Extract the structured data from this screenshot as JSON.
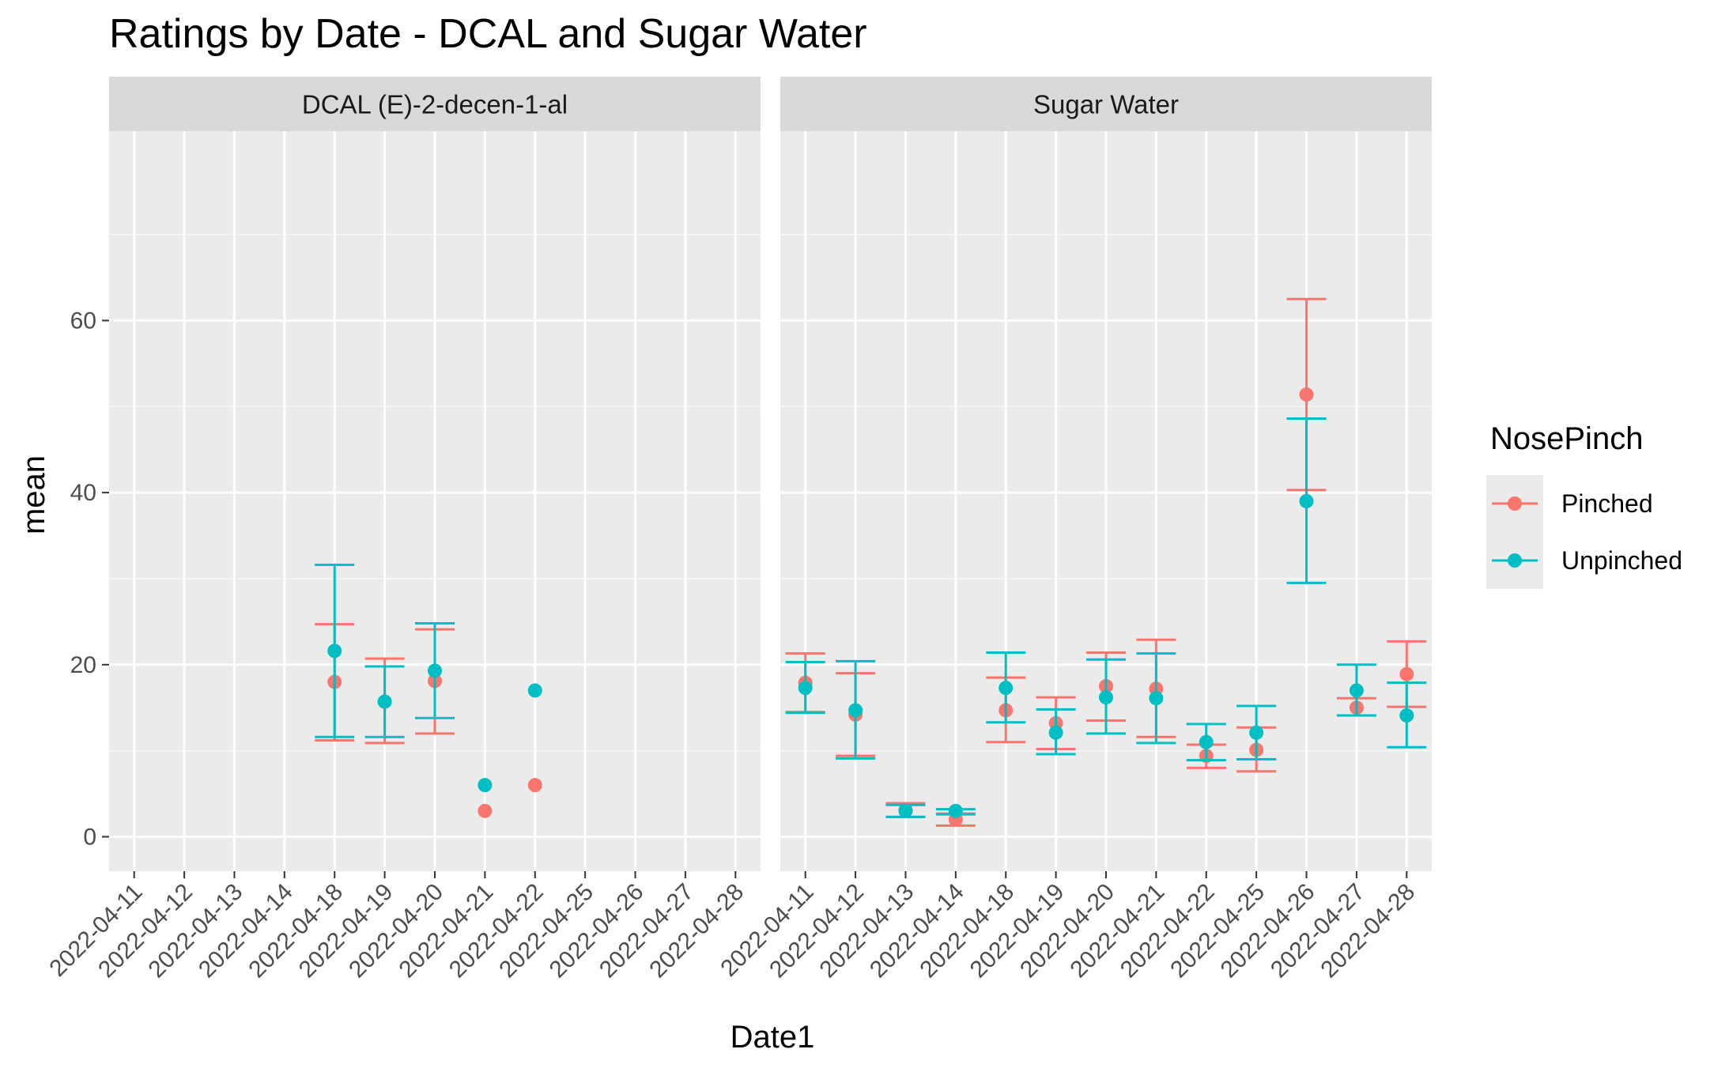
{
  "chart_data": {
    "type": "scatter",
    "title": "Ratings by Date - DCAL and Sugar Water",
    "xlabel": "Date1",
    "ylabel": "mean",
    "ylim": [
      -4,
      82
    ],
    "yticks": [
      0,
      20,
      40,
      60
    ],
    "grid": true,
    "legend": {
      "title": "NosePinch",
      "position": "right"
    },
    "categories": [
      "2022-04-11",
      "2022-04-12",
      "2022-04-13",
      "2022-04-14",
      "2022-04-18",
      "2022-04-19",
      "2022-04-20",
      "2022-04-21",
      "2022-04-22",
      "2022-04-25",
      "2022-04-26",
      "2022-04-27",
      "2022-04-28"
    ],
    "colors": {
      "Pinched": "#F8766D",
      "Unpinched": "#00BFC4"
    },
    "panels": [
      {
        "name": "DCAL (E)-2-decen-1-al",
        "series": [
          {
            "name": "Pinched",
            "points": [
              {
                "x": "2022-04-18",
                "y": 18.0,
                "lo": 11.2,
                "hi": 24.7
              },
              {
                "x": "2022-04-19",
                "y": 15.7,
                "lo": 10.9,
                "hi": 20.7
              },
              {
                "x": "2022-04-20",
                "y": 18.1,
                "lo": 12.0,
                "hi": 24.1
              },
              {
                "x": "2022-04-21",
                "y": 3.0
              },
              {
                "x": "2022-04-22",
                "y": 6.0
              }
            ]
          },
          {
            "name": "Unpinched",
            "points": [
              {
                "x": "2022-04-18",
                "y": 21.6,
                "lo": 11.6,
                "hi": 31.6
              },
              {
                "x": "2022-04-19",
                "y": 15.7,
                "lo": 11.6,
                "hi": 19.8
              },
              {
                "x": "2022-04-20",
                "y": 19.3,
                "lo": 13.8,
                "hi": 24.8
              },
              {
                "x": "2022-04-21",
                "y": 6.0
              },
              {
                "x": "2022-04-22",
                "y": 17.0
              }
            ]
          }
        ]
      },
      {
        "name": "Sugar Water",
        "series": [
          {
            "name": "Pinched",
            "points": [
              {
                "x": "2022-04-11",
                "y": 17.9,
                "lo": 14.5,
                "hi": 21.3
              },
              {
                "x": "2022-04-12",
                "y": 14.2,
                "lo": 9.4,
                "hi": 19.0
              },
              {
                "x": "2022-04-13",
                "y": 3.1,
                "lo": 2.3,
                "hi": 3.9
              },
              {
                "x": "2022-04-14",
                "y": 2.0,
                "lo": 1.3,
                "hi": 2.7
              },
              {
                "x": "2022-04-18",
                "y": 14.7,
                "lo": 11.0,
                "hi": 18.5
              },
              {
                "x": "2022-04-19",
                "y": 13.2,
                "lo": 10.2,
                "hi": 16.2
              },
              {
                "x": "2022-04-20",
                "y": 17.5,
                "lo": 13.5,
                "hi": 21.4
              },
              {
                "x": "2022-04-21",
                "y": 17.2,
                "lo": 11.6,
                "hi": 22.9
              },
              {
                "x": "2022-04-22",
                "y": 9.4,
                "lo": 8.0,
                "hi": 10.7
              },
              {
                "x": "2022-04-25",
                "y": 10.1,
                "lo": 7.6,
                "hi": 12.7
              },
              {
                "x": "2022-04-26",
                "y": 51.4,
                "lo": 40.3,
                "hi": 62.5
              },
              {
                "x": "2022-04-27",
                "y": 15.0,
                "lo": 14.1,
                "hi": 16.1
              },
              {
                "x": "2022-04-28",
                "y": 18.9,
                "lo": 15.1,
                "hi": 22.7
              }
            ]
          },
          {
            "name": "Unpinched",
            "points": [
              {
                "x": "2022-04-11",
                "y": 17.3,
                "lo": 14.4,
                "hi": 20.3
              },
              {
                "x": "2022-04-12",
                "y": 14.7,
                "lo": 9.1,
                "hi": 20.4
              },
              {
                "x": "2022-04-13",
                "y": 3.0,
                "lo": 2.3,
                "hi": 3.7
              },
              {
                "x": "2022-04-14",
                "y": 3.0,
                "lo": 2.6,
                "hi": 3.2
              },
              {
                "x": "2022-04-18",
                "y": 17.3,
                "lo": 13.3,
                "hi": 21.4
              },
              {
                "x": "2022-04-19",
                "y": 12.1,
                "lo": 9.6,
                "hi": 14.8
              },
              {
                "x": "2022-04-20",
                "y": 16.2,
                "lo": 12.0,
                "hi": 20.6
              },
              {
                "x": "2022-04-21",
                "y": 16.1,
                "lo": 10.9,
                "hi": 21.3
              },
              {
                "x": "2022-04-22",
                "y": 11.0,
                "lo": 8.9,
                "hi": 13.1
              },
              {
                "x": "2022-04-25",
                "y": 12.1,
                "lo": 9.0,
                "hi": 15.2
              },
              {
                "x": "2022-04-26",
                "y": 39.0,
                "lo": 29.5,
                "hi": 48.6
              },
              {
                "x": "2022-04-27",
                "y": 17.0,
                "lo": 14.1,
                "hi": 20.0
              },
              {
                "x": "2022-04-28",
                "y": 14.1,
                "lo": 10.4,
                "hi": 17.9
              }
            ]
          }
        ]
      }
    ]
  }
}
